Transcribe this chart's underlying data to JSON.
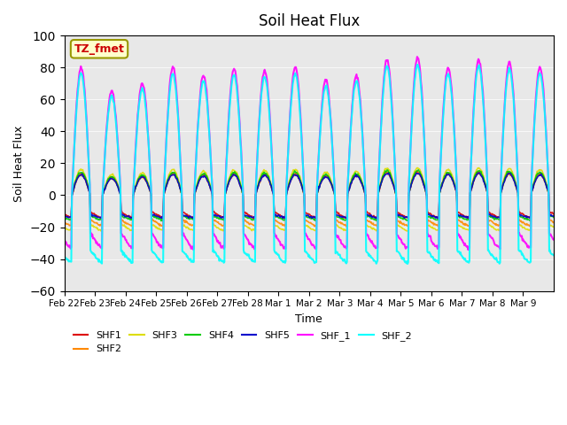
{
  "title": "Soil Heat Flux",
  "xlabel": "Time",
  "ylabel": "Soil Heat Flux",
  "ylim": [
    -60,
    100
  ],
  "yticks": [
    -60,
    -40,
    -20,
    0,
    20,
    40,
    60,
    80,
    100
  ],
  "bg_color": "#e8e8e8",
  "annotation_text": "TZ_fmet",
  "annotation_bg": "#ffffcc",
  "annotation_edge": "#999900",
  "annotation_text_color": "#cc0000",
  "series": {
    "SHF1": {
      "color": "#dd0000",
      "lw": 1.2
    },
    "SHF2": {
      "color": "#ff8800",
      "lw": 1.2
    },
    "SHF3": {
      "color": "#dddd00",
      "lw": 1.2
    },
    "SHF4": {
      "color": "#00cc00",
      "lw": 1.2
    },
    "SHF5": {
      "color": "#0000cc",
      "lw": 1.2
    },
    "SHF_1": {
      "color": "#ff00ff",
      "lw": 1.5
    },
    "SHF_2": {
      "color": "#00ffff",
      "lw": 1.5
    }
  },
  "date_labels": [
    "Feb 22",
    "Feb 23",
    "Feb 24",
    "Feb 25",
    "Feb 26",
    "Feb 27",
    "Feb 28",
    "Mar 1",
    "Mar 2",
    "Mar 3",
    "Mar 4",
    "Mar 5",
    "Mar 6",
    "Mar 7",
    "Mar 8",
    "Mar 9"
  ],
  "n_days": 16,
  "pts_per_day": 48
}
